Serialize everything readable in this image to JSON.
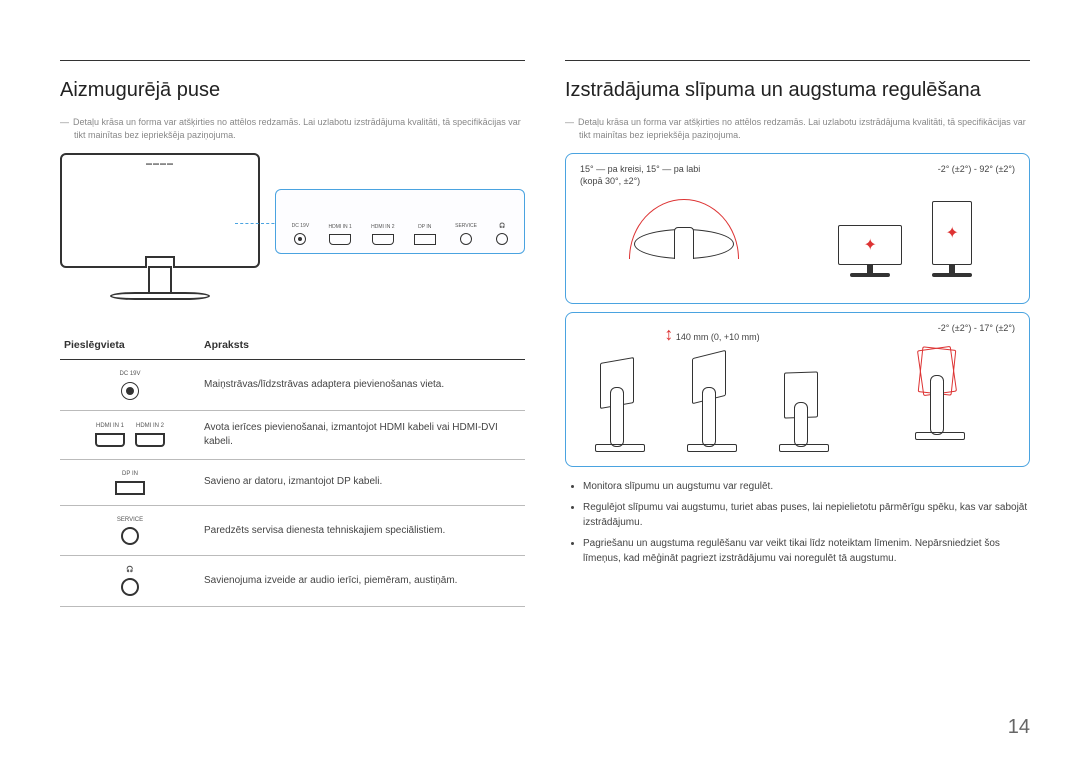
{
  "page_number": "14",
  "left": {
    "title": "Aizmugurējā puse",
    "note": "Detaļu krāsa un forma var atšķirties no attēlos redzamās. Lai uzlabotu izstrādājuma kvalitāti, tā specifikācijas var tikt mainītas bez iepriekšēja paziņojuma.",
    "panel_ports": [
      "DC 19V",
      "HDMI IN 1",
      "HDMI IN 2",
      "DP IN",
      "SERVICE",
      "🎧"
    ],
    "table": {
      "head_port": "Pieslēgvieta",
      "head_desc": "Apraksts",
      "rows": [
        {
          "labels": [
            "DC 19V"
          ],
          "icon": "dc",
          "desc": "Maiņstrāvas/līdzstrāvas adaptera pievienošanas vieta."
        },
        {
          "labels": [
            "HDMI IN 1",
            "HDMI IN 2"
          ],
          "icon": "hdmi2",
          "desc": "Avota ierīces pievienošanai, izmantojot HDMI kabeli vai HDMI-DVI kabeli."
        },
        {
          "labels": [
            "DP IN"
          ],
          "icon": "dp",
          "desc": "Savieno ar datoru, izmantojot DP kabeli."
        },
        {
          "labels": [
            "SERVICE"
          ],
          "icon": "circ",
          "desc": "Paredzēts servisa dienesta tehniskajiem speciālistiem."
        },
        {
          "labels": [
            "🎧"
          ],
          "icon": "circ",
          "desc": "Savienojuma izveide ar audio ierīci, piemēram, austiņām."
        }
      ]
    }
  },
  "right": {
    "title": "Izstrādājuma slīpuma un augstuma regulēšana",
    "note": "Detaļu krāsa un forma var atšķirties no attēlos redzamās. Lai uzlabotu izstrādājuma kvalitāti, tā specifikācijas var tikt mainītas bez iepriekšēja paziņojuma.",
    "panel1": {
      "swivel_caption": "15° — pa kreisi, 15° — pa labi\n(kopā 30°, ±2°)",
      "pivot_caption": "-2° (±2°) - 92° (±2°)"
    },
    "panel2": {
      "height_label": "140 mm (0, +10 mm)",
      "tilt_caption": "-2° (±2°) - 17° (±2°)"
    },
    "bullets": [
      "Monitora slīpumu un augstumu var regulēt.",
      "Regulējot slīpumu vai augstumu, turiet abas puses, lai nepielietotu pārmērīgu spēku, kas var sabojāt izstrādājumu.",
      "Pagriešanu un augstuma regulēšanu var veikt tikai līdz noteiktam līmenim. Nepārsniedziet šos līmeņus, kad mēģināt pagriezt izstrādājumu vai noregulēt tā augstumu."
    ]
  },
  "colors": {
    "accent": "#4aa3e0",
    "danger": "#d33",
    "text": "#333",
    "muted": "#888"
  }
}
